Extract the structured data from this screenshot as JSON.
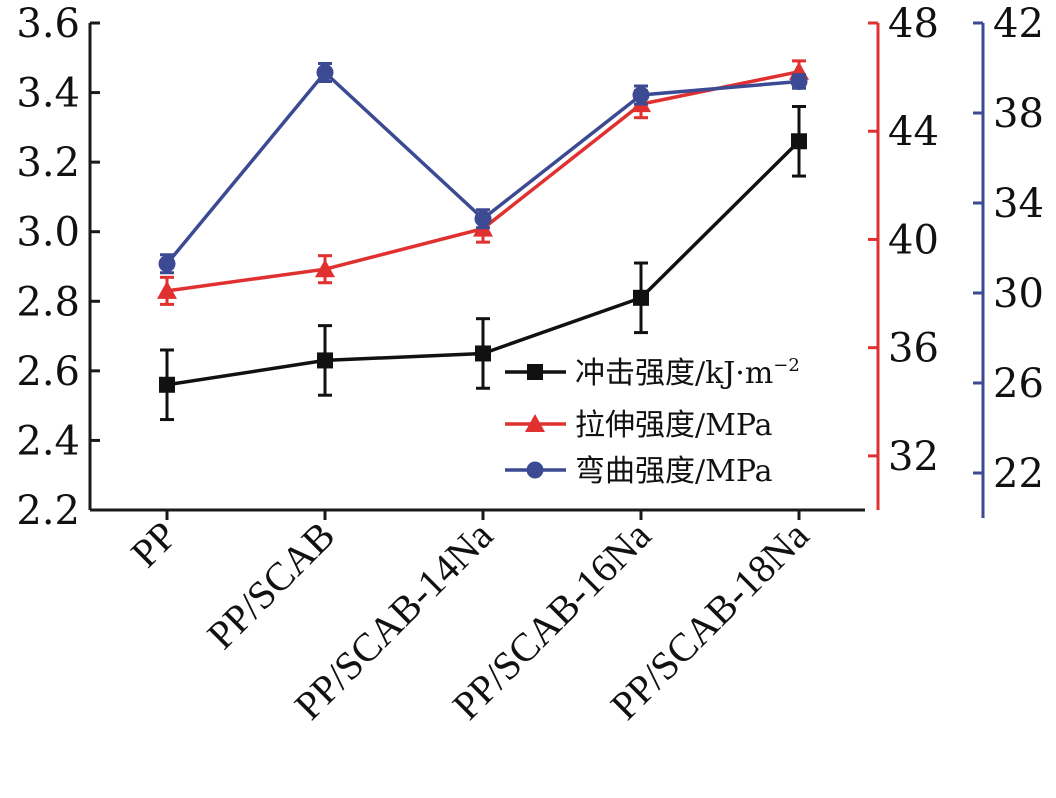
{
  "chart_data": {
    "type": "line",
    "title": "",
    "xlabel": "",
    "categories": [
      "PP",
      "PP/SCAB",
      "PP/SCAB-14Na",
      "PP/SCAB-16Na",
      "PP/SCAB-18Na"
    ],
    "axes": {
      "left": {
        "ylim": [
          2.2,
          3.6
        ],
        "ticks": [
          "2.2",
          "2.4",
          "2.6",
          "2.8",
          "3.0",
          "3.2",
          "3.4",
          "3.6"
        ],
        "color": "#1a1a1a"
      },
      "right1": {
        "ylim": [
          30,
          48
        ],
        "ticks": [
          "32",
          "36",
          "40",
          "44",
          "48"
        ],
        "color": "#e03030"
      },
      "right2": {
        "ylim": [
          20,
          42
        ],
        "ticks": [
          "22",
          "26",
          "30",
          "34",
          "38",
          "42"
        ],
        "color": "#3b4a93"
      }
    },
    "series": [
      {
        "name": "冲击强度/kJ·m⁻²",
        "label_main": "冲击强度/kJ·m",
        "label_sup": "−2",
        "axis": "left",
        "color": "#111111",
        "marker": "square",
        "values": [
          2.56,
          2.63,
          2.65,
          2.81,
          3.26
        ],
        "errors": [
          0.1,
          0.1,
          0.1,
          0.1,
          0.1
        ]
      },
      {
        "name": "拉伸强度/MPa",
        "label_main": "拉伸强度/MPa",
        "label_sup": "",
        "axis": "right1",
        "color": "#e03030",
        "marker": "triangle",
        "values": [
          38.1,
          38.9,
          40.4,
          45.0,
          46.2
        ],
        "errors": [
          0.5,
          0.5,
          0.5,
          0.5,
          0.4
        ]
      },
      {
        "name": "弯曲强度/MPa",
        "label_main": "弯曲强度/MPa",
        "label_sup": "",
        "axis": "right2",
        "color": "#3b4a93",
        "marker": "circle",
        "values": [
          31.3,
          39.8,
          33.3,
          38.8,
          39.4
        ],
        "errors": [
          0.4,
          0.4,
          0.4,
          0.4,
          0.3
        ]
      }
    ],
    "legend_position": "lower-right",
    "grid": false
  }
}
